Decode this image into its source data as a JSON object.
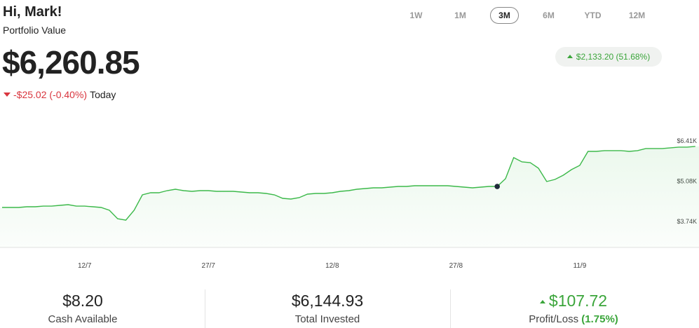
{
  "header": {
    "greeting": "Hi, Mark!",
    "subtitle": "Portfolio Value",
    "value": "$6,260.85",
    "change": "-$25.02",
    "change_percent": "(-0.40%)",
    "period": "Today"
  },
  "ranges": {
    "options": [
      "1W",
      "1M",
      "3M",
      "6M",
      "YTD",
      "12M"
    ],
    "selected": "3M"
  },
  "gain": {
    "amount": "$2,133.20",
    "percent": "(51.68%)"
  },
  "chart": {
    "type": "line",
    "categories": [
      null,
      null,
      null,
      null,
      null,
      null,
      null,
      null,
      null,
      null,
      "12/7",
      null,
      null,
      null,
      null,
      null,
      null,
      null,
      null,
      null,
      null,
      null,
      null,
      null,
      null,
      "27/7",
      null,
      null,
      null,
      null,
      null,
      null,
      null,
      null,
      null,
      null,
      null,
      null,
      null,
      null,
      "12/8",
      null,
      null,
      null,
      null,
      null,
      null,
      null,
      null,
      null,
      null,
      null,
      null,
      null,
      null,
      "27/8",
      null,
      null,
      null,
      null,
      null,
      null,
      null,
      null,
      null,
      null,
      null,
      null,
      null,
      null,
      "11/9",
      null,
      null,
      null,
      null,
      null,
      null,
      null,
      null,
      null,
      null,
      null,
      null,
      null,
      null
    ],
    "series": [
      {
        "color": "#3cb94a",
        "values": [
          4181,
          4181,
          4181,
          4204,
          4204,
          4227,
          4227,
          4251,
          4274,
          4227,
          4227,
          4204,
          4181,
          4088,
          3809,
          3763,
          4088,
          4599,
          4668,
          4668,
          4738,
          4785,
          4738,
          4715,
          4738,
          4738,
          4715,
          4715,
          4715,
          4692,
          4668,
          4668,
          4645,
          4599,
          4483,
          4460,
          4506,
          4622,
          4645,
          4645,
          4668,
          4715,
          4738,
          4785,
          4808,
          4831,
          4831,
          4854,
          4877,
          4877,
          4901,
          4901,
          4901,
          4901,
          4901,
          4877,
          4854,
          4831,
          4854,
          4877,
          4877,
          5133,
          5830,
          5690,
          5667,
          5481,
          5040,
          5110,
          5249,
          5435,
          5574,
          6038,
          6038,
          6062,
          6062,
          6062,
          6038,
          6062,
          6131,
          6131,
          6131,
          6155,
          6178,
          6178,
          6201
        ]
      }
    ],
    "marker_at": 60,
    "ylim": [
      2860,
      6640
    ],
    "yticks": [
      {
        "value": 3740,
        "label": "$3.74K"
      },
      {
        "value": 5080,
        "label": "$5.08K"
      },
      {
        "value": 6410,
        "label": "$6.41K"
      }
    ]
  },
  "stats": [
    {
      "value": "$8.20",
      "label": "Cash Available"
    },
    {
      "value": "$6,144.93",
      "label": "Total Invested"
    },
    {
      "value": "$107.72",
      "label": "Profit/Loss",
      "percent": "(1.75%)"
    }
  ]
}
